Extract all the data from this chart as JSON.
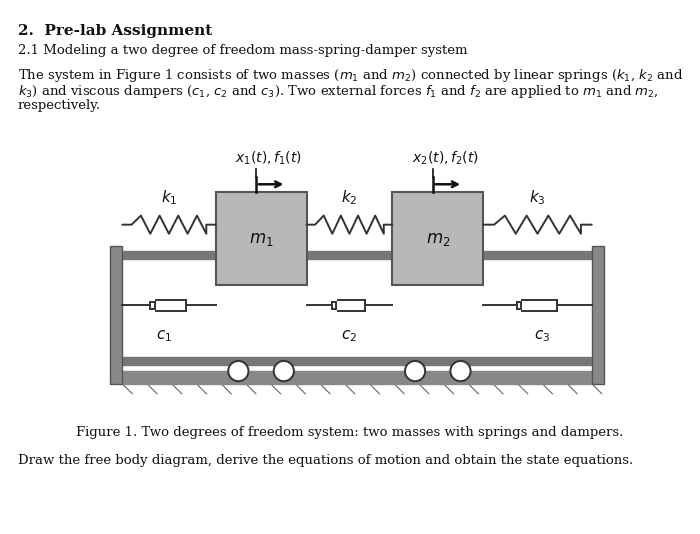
{
  "title": "2.  Pre-lab Assignment",
  "subtitle": "2.1 Modeling a two degree of freedom mass-spring-damper system",
  "body_line1": "The system in Figure 1 consists of two masses (",
  "body_line2": ") and viscous dampers (",
  "figure_caption": "Figure 1. Two degrees of freedom system: two masses with springs and dampers.",
  "bottom_text": "Draw the free body diagram, derive the equations of motion and obtain the state equations.",
  "bg_color": "#ffffff",
  "wall_color": "#777777",
  "mass_color": "#b8b8b8",
  "rail_color": "#888888",
  "spring_color": "#444444",
  "damper_color": "#333333",
  "text_color": "#222222",
  "floor_color": "#aaaaaa"
}
